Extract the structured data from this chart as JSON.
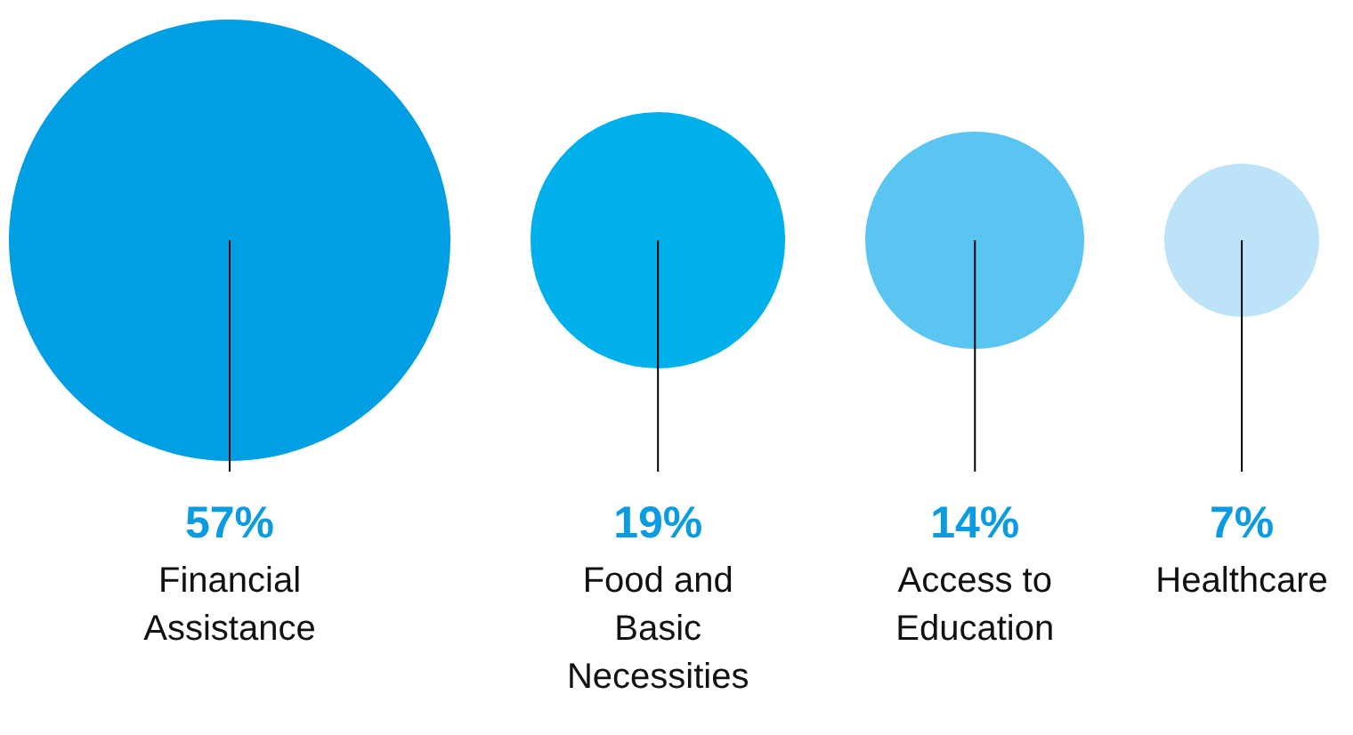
{
  "chart_data": {
    "type": "other",
    "categories": [
      "Financial Assistance",
      "Food and Basic Necessities",
      "Access to Education",
      "Healthcare"
    ],
    "values": [
      57,
      19,
      14,
      7
    ],
    "value_labels": [
      "57%",
      "19%",
      "14%",
      "7%"
    ],
    "colors": [
      "#009fe3",
      "#00b0eb",
      "#5bc5f2",
      "#bde3f8"
    ]
  }
}
